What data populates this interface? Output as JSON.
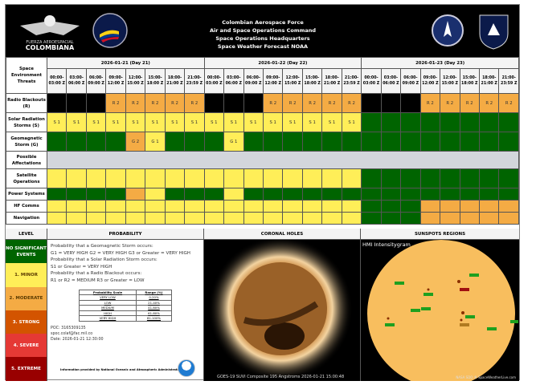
{
  "header": {
    "titles": [
      "Colombian Aerospace Force",
      "Air and Space Operations Command",
      "Space Operations Headquarters",
      "Space Weather Forecast NOAA"
    ],
    "logo_left": "FUERZA AEROESPACIAL COLOMBIANA"
  },
  "table": {
    "corner": "Space Environment Threats",
    "days": [
      "2026-01-21 (Day 21)",
      "2026-01-22 (Day 22)",
      "2026-01-23 (Day 23)"
    ],
    "times": [
      "00:00-03:00 Z",
      "03:00-06:00 Z",
      "06:00-09:00 Z",
      "09:00-12:00 Z",
      "12:00-15:00 Z",
      "15:00-18:00 Z",
      "18:00-21:00 Z",
      "21:00-23:59 Z"
    ],
    "colors": {
      "none": "#000000",
      "0": "#006400",
      "1": "#ffee58",
      "2": "#f4ab44"
    },
    "threats": [
      {
        "label": "Radio Blackouts (R)",
        "levels": [
          "none",
          "none",
          "none",
          2,
          2,
          2,
          2,
          2,
          "none",
          "none",
          "none",
          2,
          2,
          2,
          2,
          2,
          "none",
          "none",
          "none",
          2,
          2,
          2,
          2,
          2
        ],
        "codes": [
          "",
          "",
          "",
          "R 2",
          "R 2",
          "R 2",
          "R 2",
          "R 2",
          "",
          "",
          "",
          "R 2",
          "R 2",
          "R 2",
          "R 2",
          "R 2",
          "",
          "",
          "",
          "R 2",
          "R 2",
          "R 2",
          "R 2",
          "R 2"
        ]
      },
      {
        "label": "Solar Radiation Storms (S)",
        "levels": [
          1,
          1,
          1,
          1,
          1,
          1,
          1,
          1,
          1,
          1,
          1,
          1,
          1,
          1,
          1,
          1,
          0,
          0,
          0,
          0,
          0,
          0,
          0,
          0
        ],
        "codes": [
          "S 1",
          "S 1",
          "S 1",
          "S 1",
          "S 1",
          "S 1",
          "S 1",
          "S 1",
          "S 1",
          "S 1",
          "S 1",
          "S 1",
          "S 1",
          "S 1",
          "S 1",
          "S 1",
          "",
          "",
          "",
          "",
          "",
          "",
          "",
          ""
        ]
      },
      {
        "label": "Geomagnetic Storm (G)",
        "levels": [
          0,
          0,
          0,
          0,
          2,
          1,
          0,
          0,
          0,
          1,
          0,
          0,
          0,
          0,
          0,
          0,
          0,
          0,
          0,
          0,
          0,
          0,
          0,
          0
        ],
        "codes": [
          "",
          "",
          "",
          "",
          "G 2",
          "G 1",
          "",
          "",
          "",
          "G 1",
          "",
          "",
          "",
          "",
          "",
          "",
          "",
          "",
          "",
          "",
          "",
          "",
          "",
          ""
        ]
      }
    ],
    "affectations_label": "Possible Affectations",
    "affectations": [
      {
        "label": "Satellite Operations",
        "levels": [
          1,
          1,
          1,
          1,
          1,
          1,
          1,
          1,
          1,
          1,
          1,
          1,
          1,
          1,
          1,
          1,
          0,
          0,
          0,
          0,
          0,
          0,
          0,
          0
        ]
      },
      {
        "label": "Power Systems",
        "levels": [
          0,
          0,
          0,
          0,
          2,
          1,
          0,
          0,
          0,
          1,
          0,
          0,
          0,
          0,
          0,
          0,
          0,
          0,
          0,
          0,
          0,
          0,
          0,
          0
        ]
      },
      {
        "label": "HF Comms",
        "levels": [
          1,
          1,
          1,
          1,
          1,
          1,
          1,
          1,
          1,
          1,
          1,
          1,
          1,
          1,
          1,
          1,
          0,
          0,
          0,
          2,
          2,
          2,
          2,
          2
        ]
      },
      {
        "label": "Navigation",
        "levels": [
          1,
          1,
          1,
          1,
          1,
          1,
          1,
          1,
          1,
          1,
          1,
          1,
          1,
          1,
          1,
          1,
          0,
          0,
          0,
          2,
          2,
          2,
          2,
          2
        ]
      }
    ]
  },
  "levels": {
    "title": "LEVEL",
    "items": [
      {
        "label": "NO SIGNIFICANT EVENTS",
        "color": "#006400"
      },
      {
        "label": "1. MINOR",
        "color": "#ffee58"
      },
      {
        "label": "2. MODERATE",
        "color": "#f4ab44"
      },
      {
        "label": "3. STRONG",
        "color": "#d35400"
      },
      {
        "label": "4. SEVERE",
        "color": "#e53935"
      },
      {
        "label": "5. EXTREME",
        "color": "#990000"
      }
    ]
  },
  "probability": {
    "title": "PROBABILITY",
    "lines": [
      "Probability that a Geomagnetic Storm occurs:",
      "G1 = VERY HIGH   G2 = VERY HIGH   G3 or Greater = VERY HIGH",
      "Probability that a Solar Radiation Storm occurs:",
      "S1 or Greater = VERY HIGH",
      "Probability that a Radio Blackout occurs:",
      "R1 or R2 = MEDIUM   R3 or Greater = LOW"
    ],
    "scale_header": [
      "Probability Scale",
      "Range (%)"
    ],
    "scale": [
      [
        "VERY LOW",
        "0-20%"
      ],
      [
        "LOW",
        "21-40%"
      ],
      [
        "MEDIUM",
        "41-60%"
      ],
      [
        "HIGH",
        "61-80%"
      ],
      [
        "VERY HIGH",
        "81-100%"
      ]
    ],
    "poc": "POC: 3165309135",
    "email": "spoc.colaf@fac.mil.co",
    "date": "Date: 2026-01-21 12:30:00",
    "note": "Information provided by National Oceanic and Atmospheric Administration NOAA"
  },
  "coronal": {
    "title": "CORONAL HOLES",
    "caption": "GOES-19 SUVI Composite 195 Angstroms 2026-01-21 15:00:48"
  },
  "sunspots": {
    "title": "SUNSPOTS REGIONS",
    "image_label": "HMI Intensitygram",
    "credit": "NASA SDO ® SpaceWeatherLive.com"
  }
}
